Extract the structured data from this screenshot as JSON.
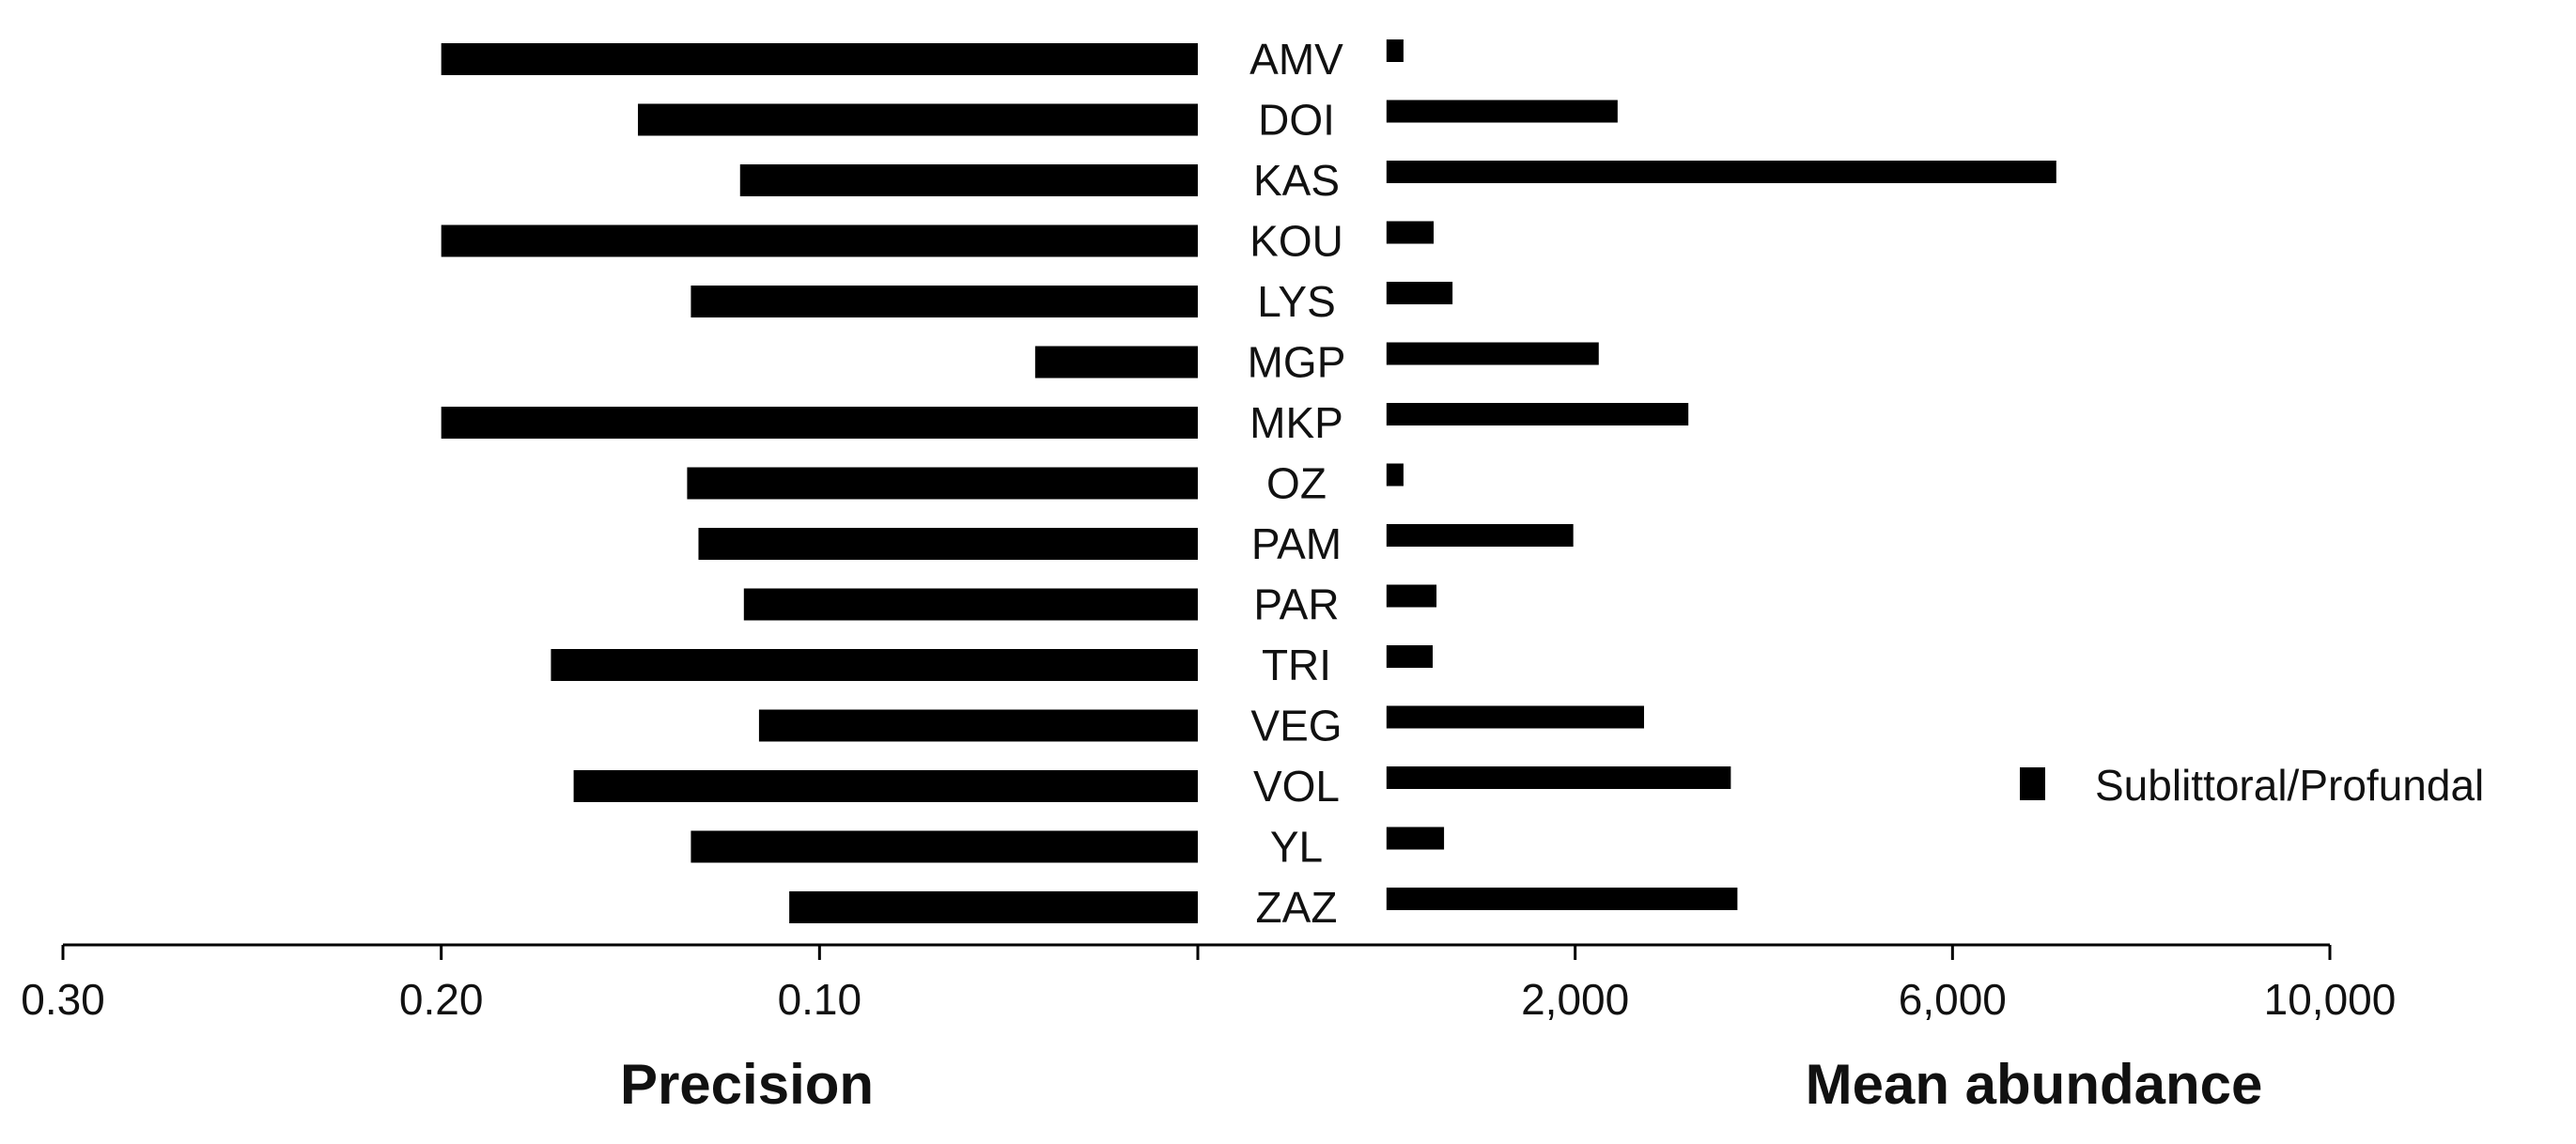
{
  "chart_data": {
    "type": "bar",
    "layout": "butterfly",
    "categories": [
      "AMV",
      "DOI",
      "KAS",
      "KOU",
      "LYS",
      "MGP",
      "MKP",
      "OZ",
      "PAM",
      "PAR",
      "TRI",
      "VEG",
      "VOL",
      "YL",
      "ZAZ"
    ],
    "left_panel": {
      "xlabel": "Precision",
      "direction": "leftward",
      "ticks": [
        "0.30",
        "0.20",
        "0.10"
      ],
      "tick_values": [
        0.3,
        0.2,
        0.1
      ],
      "xlim": [
        0,
        0.3
      ],
      "values": [
        0.2,
        0.148,
        0.121,
        0.2,
        0.134,
        0.043,
        0.2,
        0.135,
        0.132,
        0.12,
        0.171,
        0.116,
        0.165,
        0.134,
        0.108
      ]
    },
    "right_panel": {
      "xlabel": "Mean abundance",
      "direction": "rightward",
      "ticks": [
        "2,000",
        "6,000",
        "10,000"
      ],
      "tick_values": [
        2000,
        6000,
        10000
      ],
      "xlim": [
        -2000,
        10000
      ],
      "values": [
        180,
        2450,
        7100,
        500,
        700,
        2250,
        3200,
        180,
        1980,
        530,
        490,
        2730,
        3650,
        610,
        3720
      ]
    },
    "series": [
      {
        "name": "Sublittoral/Profundal",
        "color": "#000000"
      }
    ],
    "legend_position": "right"
  }
}
